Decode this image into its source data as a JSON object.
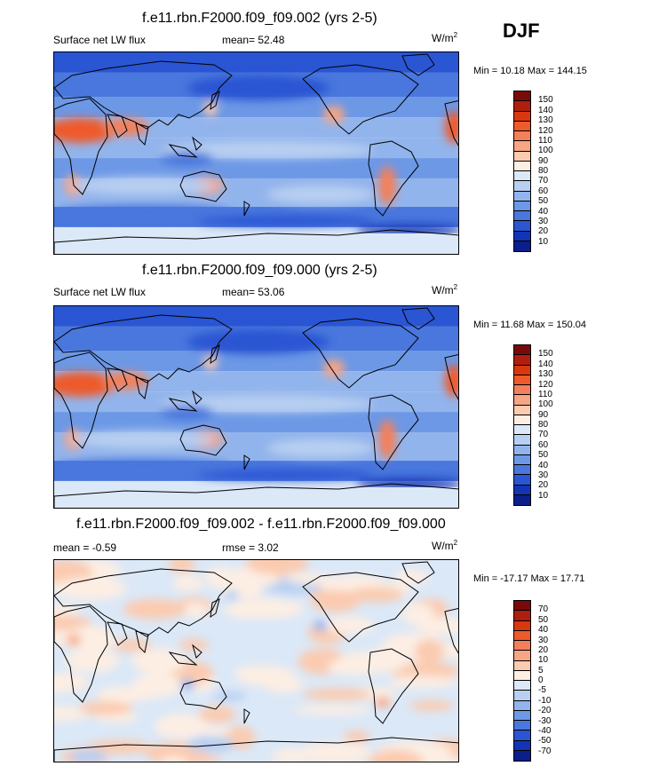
{
  "season": "DJF",
  "panels": [
    {
      "title": "f.e11.rbn.F2000.f09_f09.002 (yrs 2-5)",
      "left_label": "Surface net LW flux",
      "center_label": "mean=  52.48",
      "units": "W/m",
      "units_sup": "2",
      "minmax": "Min =  10.18 Max = 144.15",
      "colorbar_levels": [
        "150",
        "140",
        "130",
        "120",
        "110",
        "100",
        "90",
        "80",
        "70",
        "60",
        "50",
        "40",
        "30",
        "20",
        "10"
      ],
      "palette": [
        "#7a0a0a",
        "#b01e0e",
        "#d9380e",
        "#ee5a2c",
        "#f3805a",
        "#f7a584",
        "#fbcbb0",
        "#fdeee3",
        "#dbe8f7",
        "#b7cff1",
        "#92b4ec",
        "#6c98e6",
        "#4977dd",
        "#2a55d3",
        "#1235b6",
        "#0b1e8a"
      ],
      "style": "abs"
    },
    {
      "title": "f.e11.rbn.F2000.f09_f09.000 (yrs 2-5)",
      "left_label": "Surface net LW flux",
      "center_label": "mean=  53.06",
      "units": "W/m",
      "units_sup": "2",
      "minmax": "Min =  11.68 Max = 150.04",
      "colorbar_levels": [
        "150",
        "140",
        "130",
        "120",
        "110",
        "100",
        "90",
        "80",
        "70",
        "60",
        "50",
        "40",
        "30",
        "20",
        "10"
      ],
      "palette": [
        "#7a0a0a",
        "#b01e0e",
        "#d9380e",
        "#ee5a2c",
        "#f3805a",
        "#f7a584",
        "#fbcbb0",
        "#fdeee3",
        "#dbe8f7",
        "#b7cff1",
        "#92b4ec",
        "#6c98e6",
        "#4977dd",
        "#2a55d3",
        "#1235b6",
        "#0b1e8a"
      ],
      "style": "abs"
    },
    {
      "title": "f.e11.rbn.F2000.f09_f09.002 - f.e11.rbn.F2000.f09_f09.000",
      "left_label": "mean =  -0.59",
      "center_label": "rmse =   3.02",
      "units": "W/m",
      "units_sup": "2",
      "minmax": "Min = -17.17 Max =  17.71",
      "colorbar_levels": [
        "70",
        "50",
        "40",
        "30",
        "20",
        "10",
        "5",
        "0",
        "-5",
        "-10",
        "-20",
        "-30",
        "-40",
        "-50",
        "-70"
      ],
      "palette": [
        "#7a0a0a",
        "#b01e0e",
        "#d9380e",
        "#ee5a2c",
        "#f3805a",
        "#f7a584",
        "#fbcbb0",
        "#fdeee3",
        "#dbe8f7",
        "#b7cff1",
        "#92b4ec",
        "#6c98e6",
        "#4977dd",
        "#2a55d3",
        "#1235b6",
        "#0b1e8a"
      ],
      "style": "diff"
    }
  ]
}
